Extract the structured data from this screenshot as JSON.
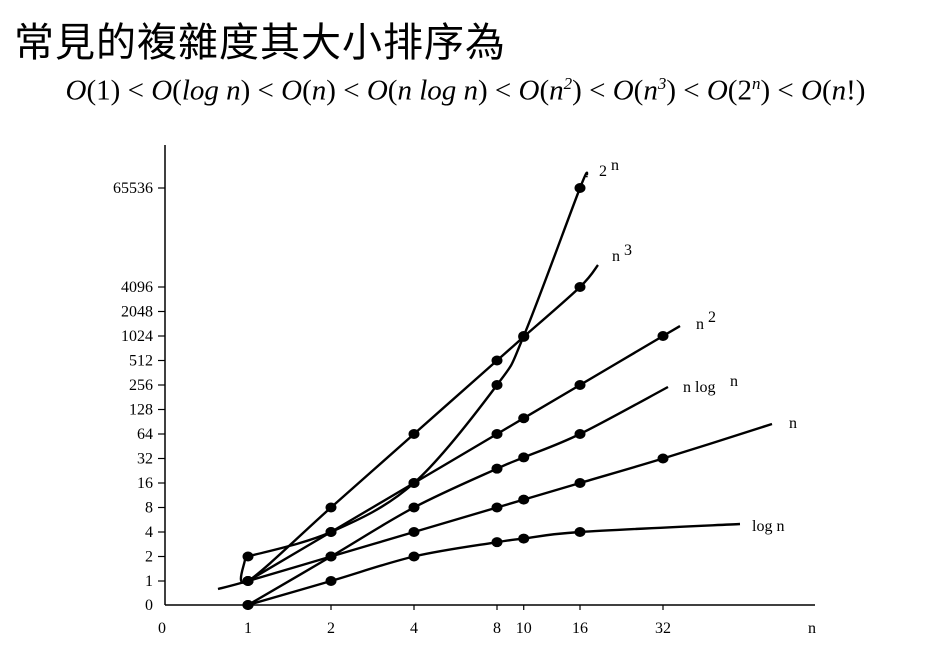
{
  "title": "常見的複雜度其大小排序為",
  "formula": "O(1) < O(log n) < O(n) < O(n log n) < O(n²) < O(n³) < O(2ⁿ) < O(n!)",
  "chart_data": {
    "type": "line",
    "xlabel": "n",
    "ylabel": "",
    "x_scale": "log2",
    "y_scale": "log2",
    "x_ticks": [
      "0",
      "1",
      "2",
      "4",
      "8",
      "10",
      "16",
      "32"
    ],
    "y_ticks": [
      "0",
      "1",
      "2",
      "4",
      "8",
      "16",
      "32",
      "64",
      "128",
      "256",
      "512",
      "1024",
      "2048",
      "4096",
      "65536"
    ],
    "grid": false,
    "series": [
      {
        "name": "log n",
        "x": [
          1,
          2,
          4,
          8,
          10,
          16
        ],
        "y": [
          0,
          1,
          2,
          3,
          3.32,
          4
        ]
      },
      {
        "name": "n",
        "x": [
          1,
          2,
          4,
          8,
          10,
          16,
          32
        ],
        "y": [
          1,
          2,
          4,
          8,
          10,
          16,
          32
        ]
      },
      {
        "name": "n log n",
        "x": [
          1,
          2,
          4,
          8,
          10,
          16
        ],
        "y": [
          0,
          2,
          8,
          24,
          33,
          64
        ]
      },
      {
        "name": "n²",
        "x": [
          1,
          2,
          4,
          8,
          10,
          16,
          32
        ],
        "y": [
          1,
          4,
          16,
          64,
          100,
          256,
          1024
        ]
      },
      {
        "name": "n³",
        "x": [
          1,
          2,
          4,
          8,
          10,
          16
        ],
        "y": [
          1,
          8,
          64,
          512,
          1000,
          4096
        ]
      },
      {
        "name": "2ⁿ",
        "x": [
          1,
          2,
          4,
          8,
          10,
          16
        ],
        "y": [
          2,
          4,
          16,
          256,
          1024,
          65536
        ]
      }
    ],
    "labels": {
      "log_n": "log n",
      "n": "n",
      "nlogn_main": "n log",
      "nlogn_sup": "n",
      "n2_base": "n",
      "n2_sup": "2",
      "n3_base": "n",
      "n3_sup": "3",
      "exp_base": "2",
      "exp_sup": "n"
    }
  }
}
